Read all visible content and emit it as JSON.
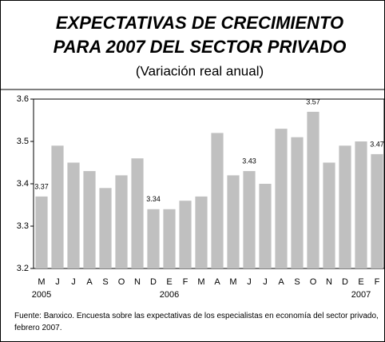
{
  "chart_data": {
    "type": "bar",
    "title": [
      "EXPECTATIVAS DE CRECIMIENTO",
      "PARA 2007 DEL SECTOR PRIVADO"
    ],
    "subtitle": "(Variación real anual)",
    "categories": [
      "M",
      "J",
      "J",
      "A",
      "S",
      "O",
      "N",
      "D",
      "E",
      "F",
      "M",
      "A",
      "M",
      "J",
      "J",
      "A",
      "S",
      "O",
      "N",
      "D",
      "E",
      "F"
    ],
    "years": [
      "2005",
      null,
      null,
      null,
      null,
      null,
      null,
      null,
      "2006",
      null,
      null,
      null,
      null,
      null,
      null,
      null,
      null,
      null,
      null,
      null,
      "2007",
      null
    ],
    "values": [
      3.37,
      3.49,
      3.45,
      3.43,
      3.39,
      3.42,
      3.46,
      3.34,
      3.34,
      3.36,
      3.37,
      3.52,
      3.42,
      3.43,
      3.4,
      3.53,
      3.51,
      3.57,
      3.45,
      3.49,
      3.5,
      3.47
    ],
    "value_labels": [
      "3.37",
      null,
      null,
      null,
      null,
      null,
      null,
      "3.34",
      null,
      null,
      null,
      null,
      null,
      "3.43",
      null,
      null,
      null,
      "3.57",
      null,
      null,
      null,
      "3.47"
    ],
    "color": "#c0c0c0",
    "ylim": [
      3.2,
      3.6
    ],
    "yticks": [
      3.2,
      3.3,
      3.4,
      3.5,
      3.6
    ],
    "source": "Fuente: Banxico. Encuesta sobre las expectativas de los especialistas en economía del sector privado, febrero 2007."
  }
}
